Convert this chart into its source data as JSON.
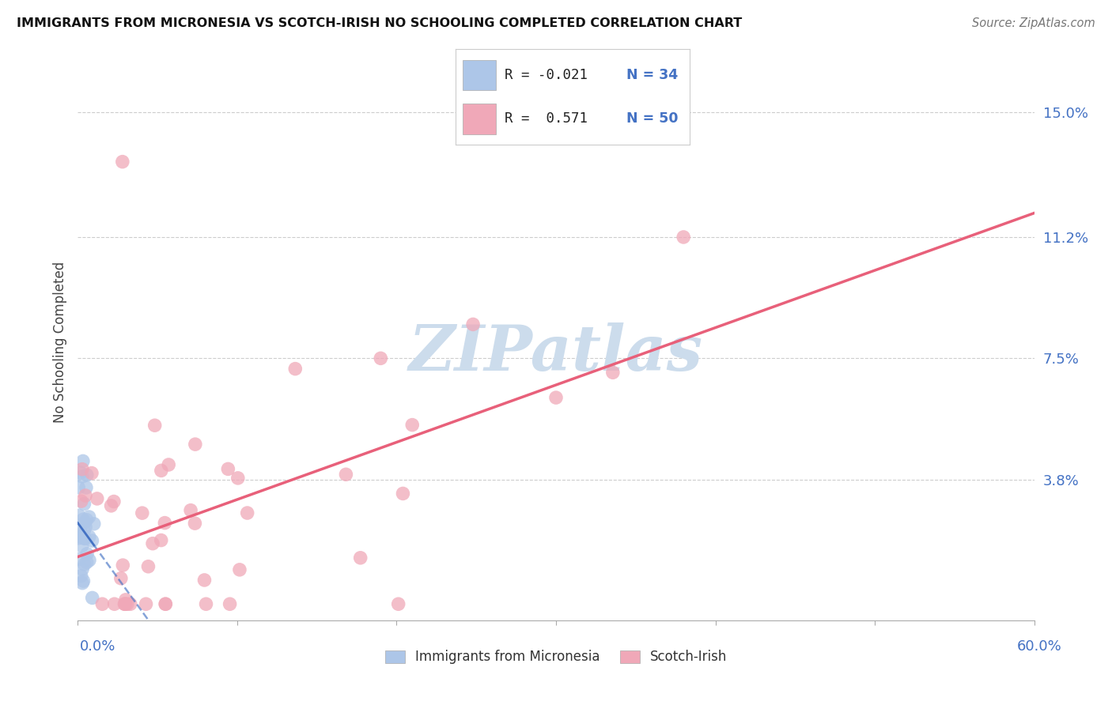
{
  "title": "IMMIGRANTS FROM MICRONESIA VS SCOTCH-IRISH NO SCHOOLING COMPLETED CORRELATION CHART",
  "source": "Source: ZipAtlas.com",
  "ylabel": "No Schooling Completed",
  "ytick_values": [
    0.15,
    0.112,
    0.075,
    0.038
  ],
  "ytick_labels": [
    "15.0%",
    "11.2%",
    "7.5%",
    "3.8%"
  ],
  "xlim": [
    0.0,
    0.6
  ],
  "ylim": [
    -0.005,
    0.165
  ],
  "blue_color": "#adc6e8",
  "pink_color": "#f0a8b8",
  "blue_line_color": "#4472c4",
  "pink_line_color": "#e8607a",
  "background_color": "#ffffff",
  "grid_color": "#c8c8c8",
  "watermark": "ZIPatlas",
  "watermark_color": "#ccdcec",
  "legend_text_color": "#4472c4",
  "legend_R_color": "#333333",
  "scatter_size": 160,
  "scatter_alpha": 0.75
}
